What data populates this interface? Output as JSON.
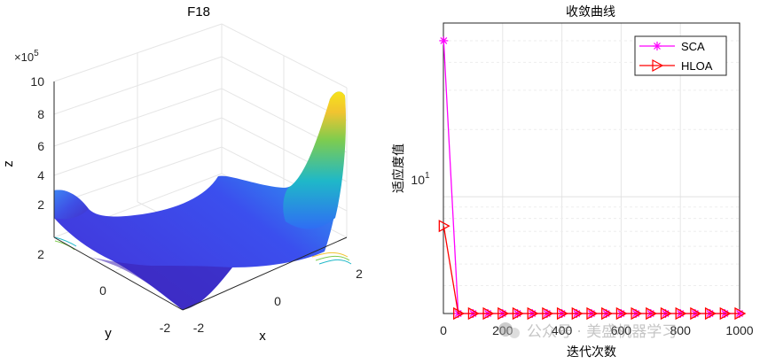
{
  "chart_data": [
    {
      "type": "surface3d",
      "title": "F18",
      "xlabel": "x",
      "ylabel": "y",
      "zlabel": "z",
      "z_exponent_label": "×10",
      "z_exponent_power": "5",
      "x_range": [
        -2,
        2
      ],
      "y_range": [
        -2,
        2
      ],
      "z_range": [
        0,
        10
      ],
      "x_ticks": [
        "-2",
        "0",
        "2"
      ],
      "y_ticks": [
        "2",
        "0",
        "-2"
      ],
      "z_ticks": [
        "2",
        "4",
        "6",
        "8",
        "10"
      ],
      "colormap": [
        "#3e26a8",
        "#4a43e0",
        "#3f73fe",
        "#2d9fe6",
        "#19bdc6",
        "#44cc83",
        "#b3c232",
        "#f5c82d",
        "#f9fb14"
      ],
      "grid": true
    },
    {
      "type": "line",
      "title": "收敛曲线",
      "xlabel": "迭代次数",
      "ylabel": "适应度值",
      "yscale": "log",
      "xlim": [
        0,
        1000
      ],
      "ylim": [
        3,
        60
      ],
      "x_ticks": [
        "0",
        "200",
        "400",
        "600",
        "800",
        "1000"
      ],
      "y_tick_base": "10",
      "y_tick_power": "1",
      "legend_position": "top-right",
      "series": [
        {
          "name": "SCA",
          "color": "#ff00ff",
          "marker": "asterisk",
          "x": [
            1,
            50,
            100,
            150,
            200,
            250,
            300,
            350,
            400,
            450,
            500,
            550,
            600,
            650,
            700,
            750,
            800,
            850,
            900,
            950,
            1000
          ],
          "y": [
            50,
            3,
            3,
            3,
            3,
            3,
            3,
            3,
            3,
            3,
            3,
            3,
            3,
            3,
            3,
            3,
            3,
            3,
            3,
            3,
            3
          ]
        },
        {
          "name": "HLOA",
          "color": "#ff0000",
          "marker": "triangle-right",
          "x": [
            1,
            50,
            100,
            150,
            200,
            250,
            300,
            350,
            400,
            450,
            500,
            550,
            600,
            650,
            700,
            750,
            800,
            850,
            900,
            950,
            1000
          ],
          "y": [
            7.4,
            3,
            3,
            3,
            3,
            3,
            3,
            3,
            3,
            3,
            3,
            3,
            3,
            3,
            3,
            3,
            3,
            3,
            3,
            3,
            3
          ]
        }
      ]
    }
  ],
  "watermark": "公众号 · 美盛机器学习"
}
